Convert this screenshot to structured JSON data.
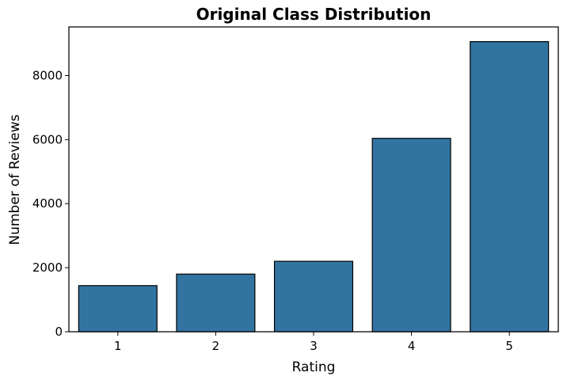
{
  "chart_data": {
    "type": "bar",
    "title": "Original Class Distribution",
    "xlabel": "Rating",
    "ylabel": "Number of Reviews",
    "categories": [
      "1",
      "2",
      "3",
      "4",
      "5"
    ],
    "values": [
      1440,
      1800,
      2200,
      6040,
      9060
    ],
    "ylim": [
      0,
      9520
    ],
    "yticks": [
      0,
      2000,
      4000,
      6000,
      8000
    ],
    "grid": false,
    "colors": {
      "bar_fill": "#3274a1",
      "bar_edge": "#000000",
      "axis": "#000000"
    }
  }
}
